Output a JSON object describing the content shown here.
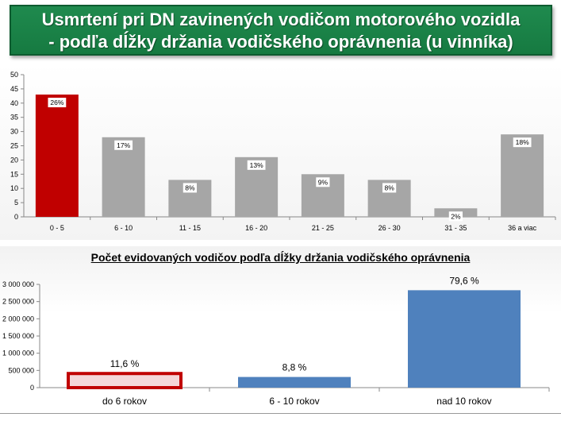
{
  "title_line1": "Usmrtení pri DN zavinených vodičom motorového vozidla",
  "title_line2": "- podľa dĺžky držania vodičského oprávnenia (u vinníka)",
  "chart_data": [
    {
      "type": "bar",
      "categories": [
        "0 - 5",
        "6 - 10",
        "11 - 15",
        "16 - 20",
        "21 - 25",
        "26 - 30",
        "31 - 35",
        "36 a viac"
      ],
      "values": [
        43,
        28,
        13,
        21,
        15,
        13,
        3,
        29
      ],
      "data_labels": [
        "26%",
        "17%",
        "8%",
        "13%",
        "9%",
        "8%",
        "2%",
        "18%"
      ],
      "ylim": [
        0,
        50
      ],
      "yticks": [
        "0",
        "5",
        "10",
        "15",
        "20",
        "25",
        "30",
        "35",
        "40",
        "45",
        "50"
      ],
      "colors": [
        "#c00000",
        "#a6a6a6",
        "#a6a6a6",
        "#a6a6a6",
        "#a6a6a6",
        "#a6a6a6",
        "#a6a6a6",
        "#a6a6a6"
      ],
      "grid": false
    },
    {
      "type": "bar",
      "title": "Počet evidovaných vodičov podľa dĺžky držania vodičského oprávnenia",
      "categories": [
        "do 6 rokov",
        "6 - 10 rokov",
        "nad 10 rokov"
      ],
      "values": [
        410000,
        310000,
        2830000
      ],
      "data_labels": [
        "11,6 %",
        "8,8 %",
        "79,6 %"
      ],
      "ylim": [
        0,
        3000000
      ],
      "yticks": [
        "0",
        "500 000",
        "1 000 000",
        "1 500 000",
        "2 000 000",
        "2 500 000",
        "3 000 000"
      ],
      "colors": [
        "#f4d7d9",
        "#4f81bd",
        "#4f81bd"
      ],
      "highlight_border": "#c00000",
      "grid": false
    }
  ]
}
